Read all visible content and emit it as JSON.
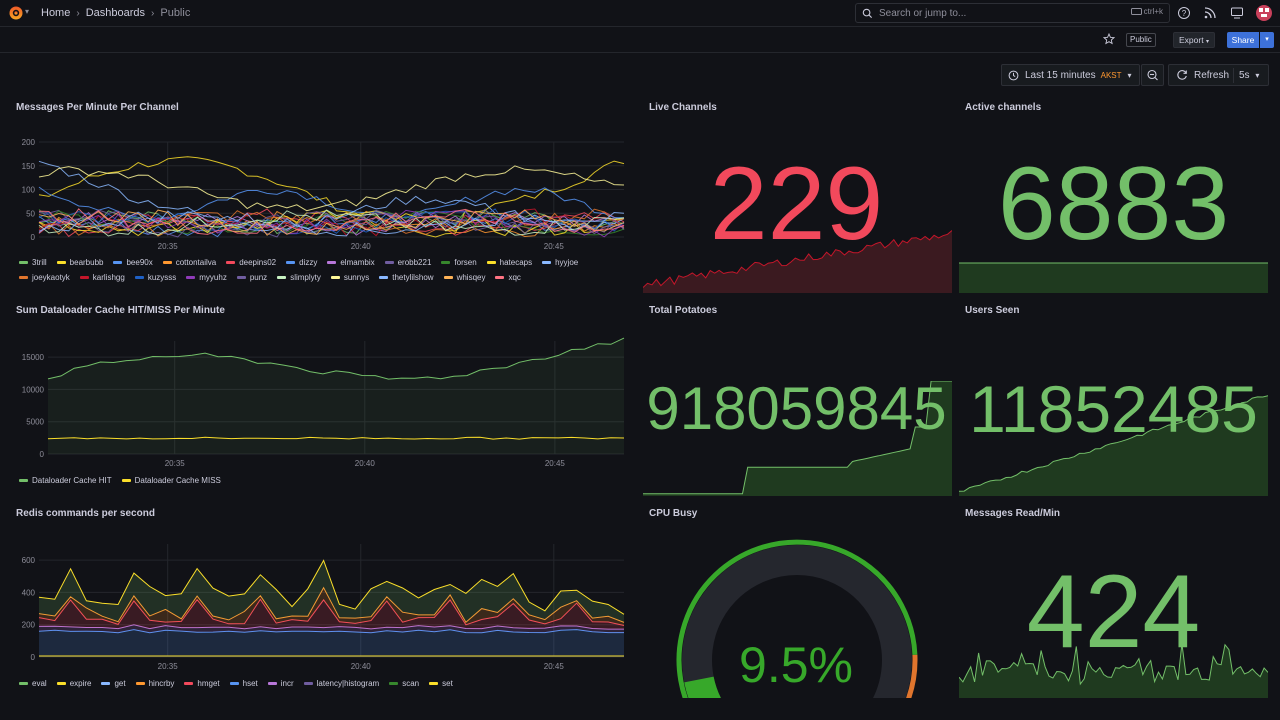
{
  "header": {
    "breadcrumb": [
      "Home",
      "Dashboards",
      "Public"
    ],
    "search_placeholder": "Search or jump to...",
    "search_shortcut": "ctrl+k",
    "public_badge": "Public",
    "export_label": "Export",
    "share_label": "Share"
  },
  "toolbar": {
    "time_range": "Last 15 minutes",
    "timezone": "AKST",
    "refresh_label": "Refresh",
    "refresh_interval": "5s"
  },
  "colors": {
    "green": "#73bf69",
    "red": "#f2495c",
    "bg": "#111217"
  },
  "panels": {
    "messages": {
      "title": "Messages Per Minute Per Channel",
      "yticks": [
        "200",
        "150",
        "100",
        "50",
        "0"
      ],
      "xticks": [
        "20:35",
        "20:40",
        "20:45"
      ],
      "legend": [
        {
          "name": "3trill",
          "color": "#73bf69"
        },
        {
          "name": "bearbubb",
          "color": "#fade2a"
        },
        {
          "name": "bee90x",
          "color": "#5794f2"
        },
        {
          "name": "cottontailva",
          "color": "#ff9830"
        },
        {
          "name": "deepins02",
          "color": "#f2495c"
        },
        {
          "name": "dizzy",
          "color": "#5794f2"
        },
        {
          "name": "elmambix",
          "color": "#b877d9"
        },
        {
          "name": "erobb221",
          "color": "#705da0"
        },
        {
          "name": "forsen",
          "color": "#37872d"
        },
        {
          "name": "hatecaps",
          "color": "#fade2a"
        },
        {
          "name": "hyyjoe",
          "color": "#8ab8ff"
        },
        {
          "name": "joeykaotyk",
          "color": "#e0752d"
        },
        {
          "name": "karlishgg",
          "color": "#c4162a"
        },
        {
          "name": "kuzysss",
          "color": "#1f60c4"
        },
        {
          "name": "myyuhz",
          "color": "#8f3bb8"
        },
        {
          "name": "punz",
          "color": "#705da0"
        },
        {
          "name": "slimplyty",
          "color": "#c8f2c2"
        },
        {
          "name": "sunnys",
          "color": "#fff899"
        },
        {
          "name": "thetylilshow",
          "color": "#8ab8ff"
        },
        {
          "name": "whisqey",
          "color": "#ffb357"
        },
        {
          "name": "xqc",
          "color": "#ff7383"
        }
      ]
    },
    "dataloader": {
      "title": "Sum Dataloader Cache HIT/MISS Per Minute",
      "yticks": [
        "15000",
        "10000",
        "5000",
        "0"
      ],
      "xticks": [
        "20:35",
        "20:40",
        "20:45"
      ],
      "legend": [
        {
          "name": "Dataloader Cache HIT",
          "color": "#73bf69"
        },
        {
          "name": "Dataloader Cache MISS",
          "color": "#fade2a"
        }
      ]
    },
    "redis": {
      "title": "Redis commands per second",
      "yticks": [
        "600",
        "400",
        "200",
        "0"
      ],
      "xticks": [
        "20:35",
        "20:40",
        "20:45"
      ],
      "legend": [
        {
          "name": "eval",
          "color": "#73bf69"
        },
        {
          "name": "expire",
          "color": "#fade2a"
        },
        {
          "name": "get",
          "color": "#8ab8ff"
        },
        {
          "name": "hincrby",
          "color": "#ff9830"
        },
        {
          "name": "hmget",
          "color": "#f2495c"
        },
        {
          "name": "hset",
          "color": "#5794f2"
        },
        {
          "name": "incr",
          "color": "#b877d9"
        },
        {
          "name": "latency|histogram",
          "color": "#705da0"
        },
        {
          "name": "scan",
          "color": "#37872d"
        },
        {
          "name": "set",
          "color": "#fade2a"
        }
      ]
    },
    "live_channels": {
      "title": "Live Channels",
      "value": "229"
    },
    "active_channels": {
      "title": "Active channels",
      "value": "6883"
    },
    "total_potatoes": {
      "title": "Total Potatoes",
      "value": "918059845"
    },
    "users_seen": {
      "title": "Users Seen",
      "value": "11852485"
    },
    "cpu_busy": {
      "title": "CPU Busy",
      "value": "9.5%",
      "percent": 9.5
    },
    "messages_read": {
      "title": "Messages Read/Min",
      "value": "424"
    }
  }
}
